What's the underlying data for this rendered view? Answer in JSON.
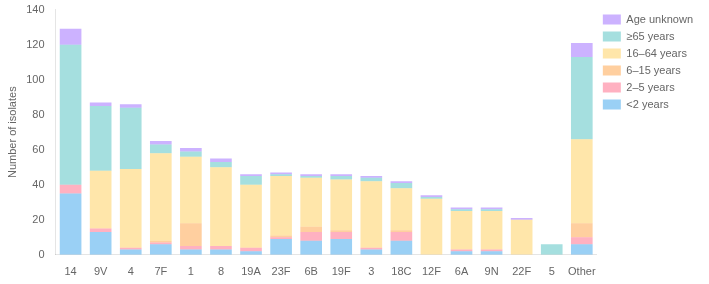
{
  "chart_data": {
    "type": "bar",
    "stacked": true,
    "ylabel": "Number of isolates",
    "categories": [
      "14",
      "9V",
      "4",
      "7F",
      "1",
      "8",
      "19A",
      "23F",
      "6B",
      "19F",
      "3",
      "18C",
      "12F",
      "6A",
      "9N",
      "22F",
      "5",
      "Other"
    ],
    "series": [
      {
        "name": "<2 years",
        "values": [
          35,
          13,
          3,
          6,
          3,
          3,
          2,
          9,
          8,
          9,
          3,
          8,
          0,
          2,
          2,
          0,
          0,
          6
        ]
      },
      {
        "name": "2–5 years",
        "values": [
          5,
          2,
          1,
          1,
          2,
          2,
          2,
          1,
          5,
          4,
          1,
          5,
          0,
          1,
          1,
          0,
          0,
          4
        ]
      },
      {
        "name": "6–15 years",
        "values": [
          0,
          0,
          0,
          1,
          13,
          0,
          0,
          1,
          3,
          1,
          0,
          1,
          0,
          0,
          0,
          0,
          0,
          8
        ]
      },
      {
        "name": "16–64 years",
        "values": [
          0,
          33,
          45,
          50,
          38,
          45,
          36,
          34,
          28,
          29,
          38,
          24,
          32,
          22,
          22,
          20,
          0,
          48
        ]
      },
      {
        "name": "≥65 years",
        "values": [
          80,
          37,
          35,
          5,
          3,
          3,
          5,
          1,
          1,
          2,
          2,
          3,
          1,
          1,
          1,
          0,
          6,
          47
        ]
      },
      {
        "name": "Age unknown",
        "values": [
          9,
          2,
          2,
          2,
          2,
          2,
          1,
          1,
          1,
          1,
          1,
          1,
          1,
          1,
          1,
          1,
          0,
          8
        ]
      }
    ],
    "ylim": [
      0,
      140
    ],
    "yticks": [
      0,
      20,
      40,
      60,
      80,
      100,
      120,
      140
    ],
    "grid": false,
    "legend": "upper right"
  }
}
